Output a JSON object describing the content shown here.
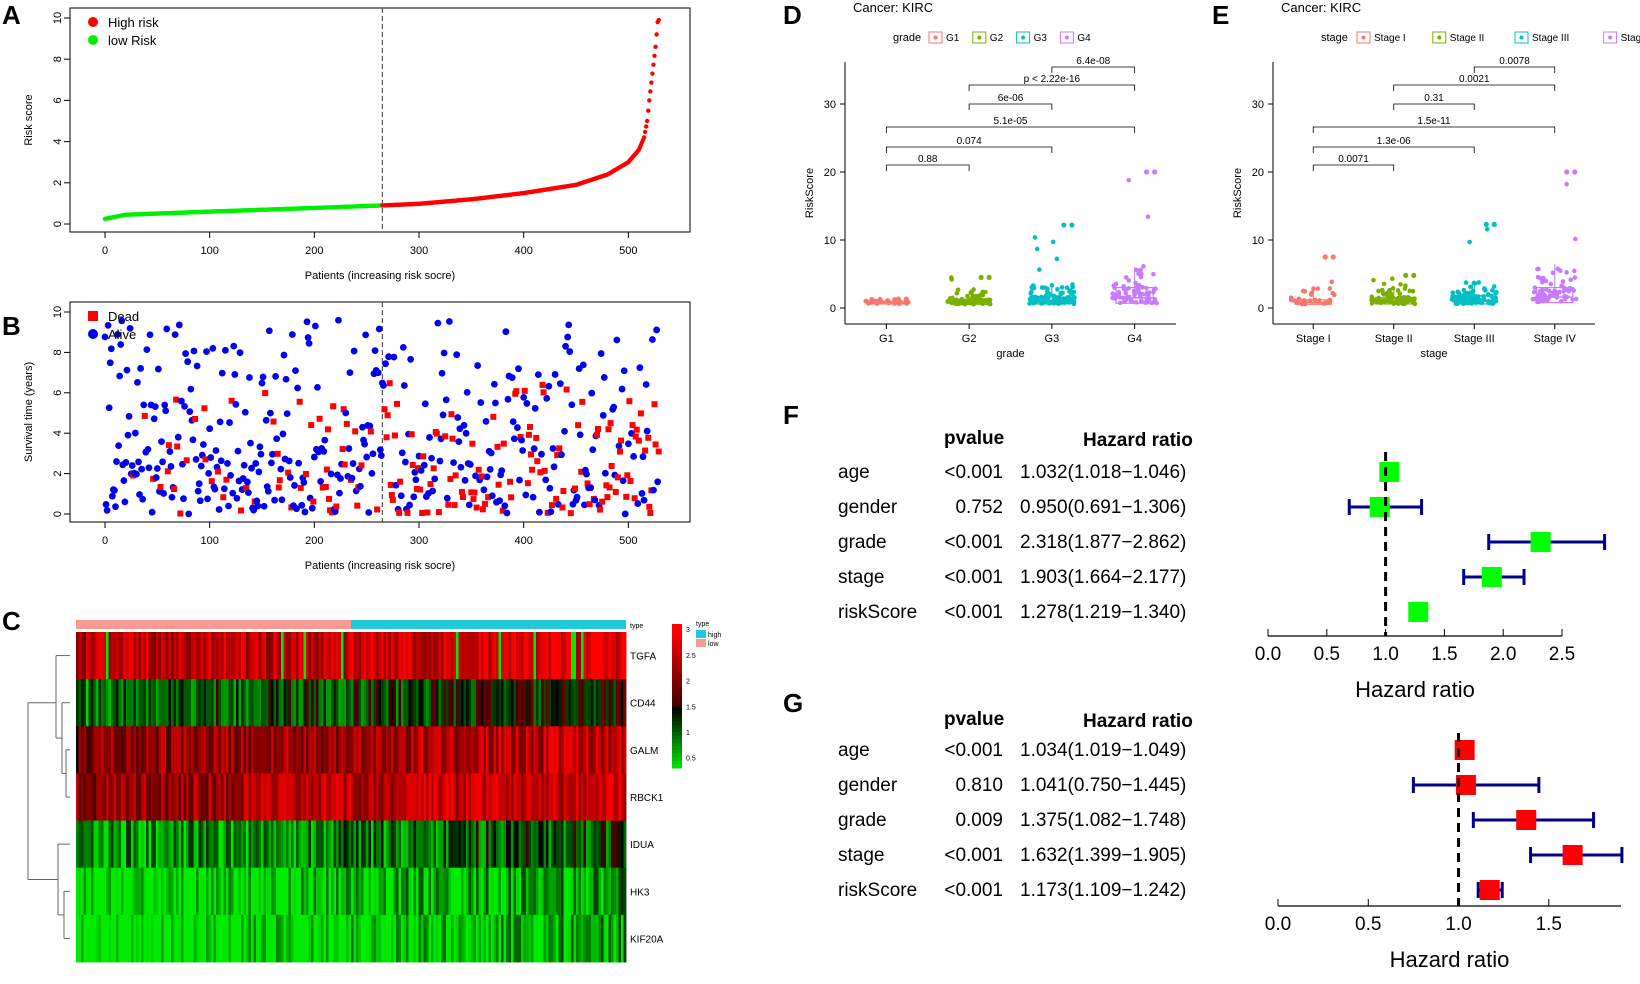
{
  "figure": {
    "panel_letters": [
      "A",
      "B",
      "C",
      "D",
      "E",
      "F",
      "G"
    ]
  },
  "chart_data": [
    {
      "id": "A",
      "type": "scatter",
      "xlabel": "Patients (increasing risk socre)",
      "ylabel": "Risk score",
      "xlim": [
        0,
        535
      ],
      "ylim": [
        0,
        10
      ],
      "xticks": [
        "0",
        "100",
        "200",
        "300",
        "400",
        "500"
      ],
      "yticks": [
        "0",
        "2",
        "4",
        "6",
        "8",
        "10"
      ],
      "cutoff_x": 265,
      "legend": [
        {
          "label": "High risk",
          "color": "#ff0000"
        },
        {
          "label": "low Risk",
          "color": "#00ee00"
        }
      ],
      "curve": {
        "n": 530,
        "cutoff_index": 265,
        "colors": {
          "low": "#00ee00",
          "high": "#ff0000"
        },
        "anchors": [
          [
            0,
            0.25
          ],
          [
            20,
            0.45
          ],
          [
            100,
            0.6
          ],
          [
            200,
            0.78
          ],
          [
            265,
            0.9
          ],
          [
            300,
            0.98
          ],
          [
            350,
            1.2
          ],
          [
            400,
            1.5
          ],
          [
            450,
            1.9
          ],
          [
            480,
            2.4
          ],
          [
            500,
            3.0
          ],
          [
            510,
            3.6
          ],
          [
            515,
            4.2
          ],
          [
            518,
            5.0
          ],
          [
            520,
            6.0
          ],
          [
            523,
            7.3
          ],
          [
            526,
            8.6
          ],
          [
            528,
            9.8
          ],
          [
            530,
            10.0
          ]
        ]
      }
    },
    {
      "id": "B",
      "type": "scatter",
      "xlabel": "Patients (increasing risk socre)",
      "ylabel": "Survival time (years)",
      "xlim": [
        0,
        535
      ],
      "ylim": [
        0,
        10
      ],
      "xticks": [
        "0",
        "100",
        "200",
        "300",
        "400",
        "500"
      ],
      "yticks": [
        "0",
        "2",
        "4",
        "6",
        "8",
        "10"
      ],
      "cutoff_x": 265,
      "legend": [
        {
          "label": "Dead",
          "color": "#ff0000"
        },
        {
          "label": "Alive",
          "color": "#0000ee"
        }
      ],
      "points": {
        "n": 530,
        "note": "pseudo-random survival scatter, dead proportion rises with risk",
        "colors": {
          "dead": "#ff0000",
          "alive": "#0000ee"
        }
      }
    },
    {
      "id": "C",
      "type": "heatmap",
      "rows": [
        "TGFA",
        "CD44",
        "GALM",
        "RBCK1",
        "IDUA",
        "HK3",
        "KIF20A"
      ],
      "row_mean": [
        2.6,
        1.2,
        2.3,
        2.4,
        0.9,
        0.5,
        0.4
      ],
      "annotation": {
        "title": "type",
        "groups": [
          {
            "label": "high",
            "color": "#22c9d6"
          },
          {
            "label": "low",
            "color": "#f79c94"
          }
        ],
        "split_fraction": 0.5
      },
      "annotation_label": "type",
      "colorbar": {
        "ticks": [
          "3",
          "2.5",
          "2",
          "1.5",
          "1",
          "0.5"
        ],
        "colors": [
          "#ff0000",
          "#000000",
          "#00ff00"
        ]
      },
      "n_cols": 530
    },
    {
      "id": "D",
      "type": "box",
      "title": "Cancer: KIRC",
      "legend_title": "grade",
      "categories": [
        "G1",
        "G2",
        "G3",
        "G4"
      ],
      "colors": [
        "#f8766d",
        "#7cae00",
        "#00bfc4",
        "#c77cff"
      ],
      "medians": [
        0.8,
        0.8,
        0.9,
        1.5
      ],
      "q1": [
        0.6,
        0.55,
        0.6,
        0.7
      ],
      "q3": [
        1.0,
        1.3,
        1.6,
        3.0
      ],
      "whisker_hi": [
        1.3,
        2.5,
        3.5,
        6.0
      ],
      "outliers_max": [
        1.3,
        4.5,
        12.2,
        20
      ],
      "ylabel": "RiskScore",
      "xlabel": "grade",
      "ylim": [
        0,
        35
      ],
      "yticks": [
        "0",
        "10",
        "20",
        "30"
      ],
      "comparisons": [
        {
          "pair": [
            0,
            1
          ],
          "label": "0.88"
        },
        {
          "pair": [
            0,
            2
          ],
          "label": "0.074"
        },
        {
          "pair": [
            0,
            3
          ],
          "label": "5.1e-05"
        },
        {
          "pair": [
            1,
            2
          ],
          "label": "6e-06"
        },
        {
          "pair": [
            1,
            3
          ],
          "label": "p < 2.22e-16"
        },
        {
          "pair": [
            2,
            3
          ],
          "label": "6.4e-08"
        }
      ]
    },
    {
      "id": "E",
      "type": "box",
      "title": "Cancer: KIRC",
      "legend_title": "stage",
      "categories": [
        "Stage I",
        "Stage II",
        "Stage III",
        "Stage IV"
      ],
      "colors": [
        "#f8766d",
        "#7cae00",
        "#00bfc4",
        "#c77cff"
      ],
      "medians": [
        0.8,
        0.9,
        1.0,
        1.6
      ],
      "q1": [
        0.55,
        0.6,
        0.6,
        0.8
      ],
      "q3": [
        1.2,
        1.5,
        1.8,
        3.0
      ],
      "whisker_hi": [
        3.0,
        3.0,
        4.0,
        6.5
      ],
      "outliers_max": [
        7.5,
        4.8,
        12.3,
        20
      ],
      "ylabel": "RiskScore",
      "xlabel": "stage",
      "ylim": [
        0,
        35
      ],
      "yticks": [
        "0",
        "10",
        "20",
        "30"
      ],
      "comparisons": [
        {
          "pair": [
            0,
            1
          ],
          "label": "0.0071"
        },
        {
          "pair": [
            0,
            2
          ],
          "label": "1.3e-06"
        },
        {
          "pair": [
            0,
            3
          ],
          "label": "1.5e-11"
        },
        {
          "pair": [
            1,
            2
          ],
          "label": "0.31"
        },
        {
          "pair": [
            1,
            3
          ],
          "label": "0.0021"
        },
        {
          "pair": [
            2,
            3
          ],
          "label": "0.0078"
        }
      ]
    },
    {
      "id": "F",
      "type": "forest",
      "headers": {
        "pvalue": "pvalue",
        "hr": "Hazard ratio"
      },
      "xlabel": "Hazard ratio",
      "xlim": [
        0,
        2.5
      ],
      "xticks": [
        "0.0",
        "0.5",
        "1.0",
        "1.5",
        "2.0",
        "2.5"
      ],
      "xtick_values": [
        0,
        0.5,
        1.0,
        1.5,
        2.0,
        2.5
      ],
      "box_color": "#00ff00",
      "rows": [
        {
          "name": "age",
          "pvalue": "<0.001",
          "hr_text": "1.032(1.018−1.046)",
          "hr": 1.032,
          "lo": 1.018,
          "hi": 1.046
        },
        {
          "name": "gender",
          "pvalue": "0.752",
          "hr_text": "0.950(0.691−1.306)",
          "hr": 0.95,
          "lo": 0.691,
          "hi": 1.306
        },
        {
          "name": "grade",
          "pvalue": "<0.001",
          "hr_text": "2.318(1.877−2.862)",
          "hr": 2.318,
          "lo": 1.877,
          "hi": 2.862
        },
        {
          "name": "stage",
          "pvalue": "<0.001",
          "hr_text": "1.903(1.664−2.177)",
          "hr": 1.903,
          "lo": 1.664,
          "hi": 2.177
        },
        {
          "name": "riskScore",
          "pvalue": "<0.001",
          "hr_text": "1.278(1.219−1.340)",
          "hr": 1.278,
          "lo": 1.219,
          "hi": 1.34
        }
      ]
    },
    {
      "id": "G",
      "type": "forest",
      "headers": {
        "pvalue": "pvalue",
        "hr": "Hazard ratio"
      },
      "xlabel": "Hazard ratio",
      "xlim": [
        0,
        1.9
      ],
      "xticks": [
        "0.0",
        "0.5",
        "1.0",
        "1.5"
      ],
      "xtick_values": [
        0,
        0.5,
        1.0,
        1.5
      ],
      "box_color": "#ff0000",
      "rows": [
        {
          "name": "age",
          "pvalue": "<0.001",
          "hr_text": "1.034(1.019−1.049)",
          "hr": 1.034,
          "lo": 1.019,
          "hi": 1.049
        },
        {
          "name": "gender",
          "pvalue": "0.810",
          "hr_text": "1.041(0.750−1.445)",
          "hr": 1.041,
          "lo": 0.75,
          "hi": 1.445
        },
        {
          "name": "grade",
          "pvalue": "0.009",
          "hr_text": "1.375(1.082−1.748)",
          "hr": 1.375,
          "lo": 1.082,
          "hi": 1.748
        },
        {
          "name": "stage",
          "pvalue": "<0.001",
          "hr_text": "1.632(1.399−1.905)",
          "hr": 1.632,
          "lo": 1.399,
          "hi": 1.905
        },
        {
          "name": "riskScore",
          "pvalue": "<0.001",
          "hr_text": "1.173(1.109−1.242)",
          "hr": 1.173,
          "lo": 1.109,
          "hi": 1.242
        }
      ]
    }
  ]
}
